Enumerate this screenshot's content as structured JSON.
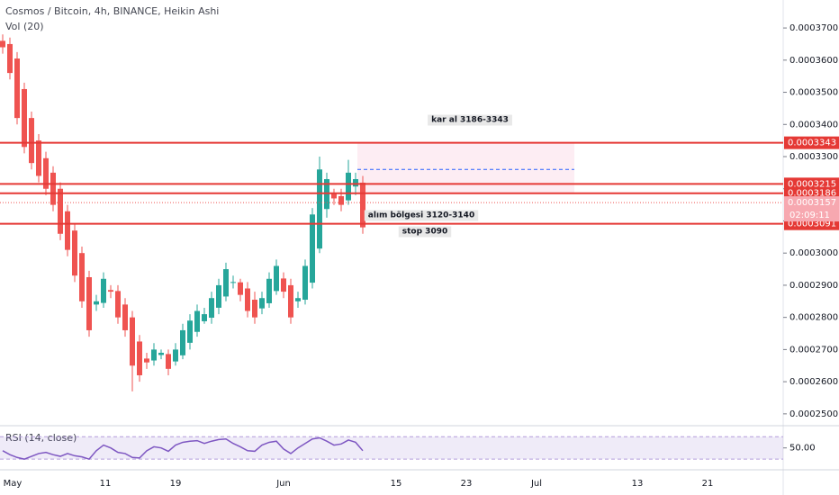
{
  "header": {
    "title": "Cosmos / Bitcoin, 4h, BINANCE, Heikin Ashi",
    "volume_label": "Vol (20)",
    "rsi_label": "RSI (14, close)"
  },
  "chart_data": {
    "type": "candlestick",
    "open": [
      0.000366,
      0.000365,
      0.0003605,
      0.000351,
      0.000342,
      0.000335,
      0.0003295,
      0.000325,
      0.00032,
      0.000313,
      0.000307,
      0.0003,
      0.0002925,
      0.000284,
      0.0002845,
      0.0002885,
      0.0002882,
      0.000284,
      0.00028,
      0.0002725,
      0.0002672,
      0.0002666,
      0.0002683,
      0.0002686,
      0.0002663,
      0.0002682,
      0.0002721,
      0.0002755,
      0.0002788,
      0.0002799,
      0.000283,
      0.0002865,
      0.0002908,
      0.0002909,
      0.000289,
      0.0002855,
      0.0002828,
      0.0002844,
      0.0002882,
      0.0002921,
      0.00029,
      0.000285,
      0.0002855,
      0.0002908,
      0.0003014,
      0.0003137,
      0.0003184,
      0.0003177,
      0.0003164,
      0.0003207,
      0.0003219
    ],
    "high": [
      0.000368,
      0.000367,
      0.0003625,
      0.000353,
      0.000344,
      0.000337,
      0.0003315,
      0.000327,
      0.000322,
      0.000315,
      0.000309,
      0.000302,
      0.0002945,
      0.000287,
      0.000294,
      0.00029,
      0.00029,
      0.000286,
      0.000282,
      0.0002745,
      0.000269,
      0.000272,
      0.00027,
      0.00027,
      0.000272,
      0.000278,
      0.000281,
      0.000284,
      0.000283,
      0.000288,
      0.000292,
      0.000297,
      0.000293,
      0.000292,
      0.000291,
      0.000288,
      0.000288,
      0.000294,
      0.000298,
      0.000294,
      0.000292,
      0.000288,
      0.000298,
      0.000314,
      0.00033,
      0.000325,
      0.00032,
      0.00032,
      0.000329,
      0.000325,
      0.000324
    ],
    "low": [
      0.000362,
      0.000354,
      0.00034,
      0.000331,
      0.000326,
      0.000322,
      0.000318,
      0.000313,
      0.000304,
      0.000299,
      0.000291,
      0.000283,
      0.000274,
      0.000282,
      0.000283,
      0.000286,
      0.000278,
      0.000274,
      0.000257,
      0.00026,
      0.000264,
      0.000265,
      0.000267,
      0.000262,
      0.000265,
      0.000267,
      0.00027,
      0.000274,
      0.000278,
      0.000278,
      0.000281,
      0.000285,
      0.000289,
      0.000285,
      0.00028,
      0.000278,
      0.000281,
      0.000283,
      0.000287,
      0.000286,
      0.000278,
      0.000283,
      0.000284,
      0.000289,
      0.0003,
      0.000311,
      0.000315,
      0.000313,
      0.000315,
      0.000318,
      0.000306
    ],
    "close": [
      0.000364,
      0.000356,
      0.000342,
      0.000333,
      0.000328,
      0.000324,
      0.00032,
      0.000315,
      0.000306,
      0.000301,
      0.000293,
      0.000285,
      0.000276,
      0.000285,
      0.000292,
      0.000288,
      0.00028,
      0.000276,
      0.000265,
      0.000262,
      0.000266,
      0.00027,
      0.000269,
      0.000264,
      0.00027,
      0.000276,
      0.000279,
      0.000282,
      0.000281,
      0.000286,
      0.00029,
      0.000295,
      0.000291,
      0.000287,
      0.000282,
      0.00028,
      0.000286,
      0.000292,
      0.000296,
      0.000288,
      0.00028,
      0.000286,
      0.000296,
      0.000312,
      0.000326,
      0.000323,
      0.000317,
      0.000315,
      0.000325,
      0.000323,
      0.000308
    ],
    "color_up": "#26a69a",
    "color_down": "#ef5350",
    "ylim": [
      0.0002466,
      0.0003787
    ],
    "yticks": [
      {
        "value": 0.00025,
        "label": "0.0002500"
      },
      {
        "value": 0.00026,
        "label": "0.0002600"
      },
      {
        "value": 0.00027,
        "label": "0.0002700"
      },
      {
        "value": 0.00028,
        "label": "0.0002800"
      },
      {
        "value": 0.00029,
        "label": "0.0002900"
      },
      {
        "value": 0.0003,
        "label": "0.0003000"
      },
      {
        "value": 0.00031,
        "label": "0.0003100"
      },
      {
        "value": 0.00032,
        "label": "0.0003200"
      },
      {
        "value": 0.00033,
        "label": "0.0003300"
      },
      {
        "value": 0.00034,
        "label": "0.0003400"
      },
      {
        "value": 0.00035,
        "label": "0.0003500"
      },
      {
        "value": 0.00036,
        "label": "0.0003600"
      },
      {
        "value": 0.00037,
        "label": "0.0003700"
      }
    ],
    "levels": [
      {
        "value": 0.0003343,
        "label": "0.0003343"
      },
      {
        "value": 0.0003215,
        "label": "0.0003215"
      },
      {
        "value": 0.0003186,
        "label": "0.0003186"
      },
      {
        "value": 0.0003091,
        "label": "0.0003091"
      }
    ],
    "level_color": "#e53935",
    "current_price": {
      "value": 0.0003157,
      "label": "0.0003157"
    },
    "countdown": "02:09:11",
    "target_zone": [
      0.0003343,
      0.0003186
    ],
    "target_mid": 0.000326,
    "annotations": [
      "kar al 3186-3343",
      "alım bölgesi 3120-3140",
      "stop 3090"
    ],
    "xtick_labels": [
      "May",
      "11",
      "19",
      "Jun",
      "15",
      "23",
      "Jul",
      "13",
      "21"
    ],
    "rsi": {
      "values": [
        45,
        38,
        33,
        30,
        35,
        40,
        42,
        38,
        35,
        40,
        36,
        34,
        30,
        45,
        55,
        50,
        42,
        40,
        33,
        32,
        45,
        52,
        50,
        44,
        55,
        60,
        62,
        63,
        58,
        62,
        65,
        66,
        58,
        52,
        45,
        44,
        55,
        60,
        62,
        48,
        40,
        50,
        58,
        66,
        68,
        62,
        55,
        57,
        64,
        60,
        45
      ],
      "ylim": [
        11,
        88
      ],
      "band": [
        30,
        70
      ],
      "yticks": [
        {
          "value": 50,
          "label": "50.00"
        }
      ],
      "color": "#7e57c2"
    }
  }
}
